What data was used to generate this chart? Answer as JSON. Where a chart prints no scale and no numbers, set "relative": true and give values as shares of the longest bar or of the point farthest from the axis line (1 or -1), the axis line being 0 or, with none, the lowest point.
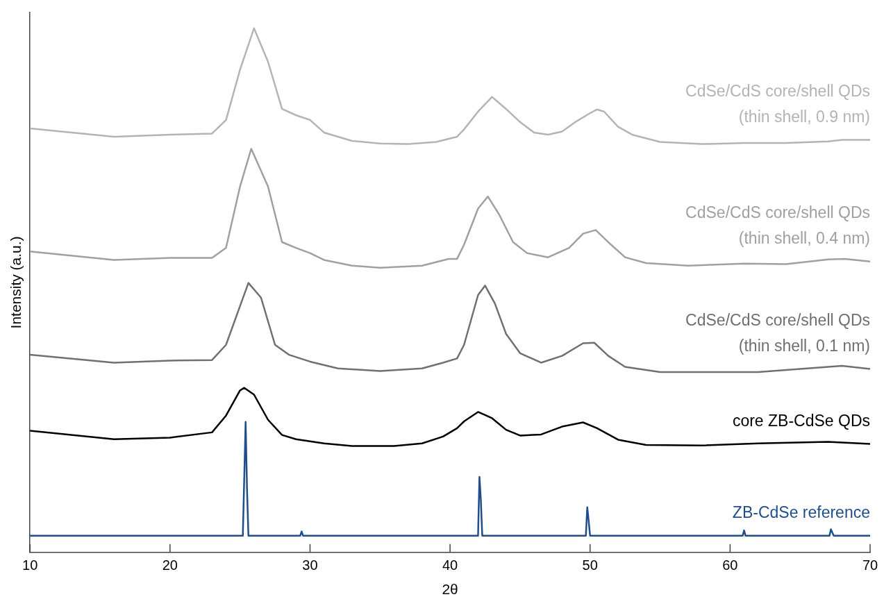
{
  "chart_data": {
    "type": "line",
    "relative": true,
    "xlabel": "2θ",
    "ylabel": "Intensity (a.u.)",
    "xlim": [
      10,
      70
    ],
    "xticks": [
      10,
      20,
      30,
      40,
      50,
      60,
      70
    ],
    "grid": false,
    "legend": false,
    "marker": "none",
    "line_style": "solid",
    "series": [
      {
        "name": "ZB-CdSe reference",
        "color": "#1f4e8c",
        "x": [
          10,
          25.2,
          25.4,
          25.5,
          25.6,
          29.3,
          29.4,
          29.5,
          42.0,
          42.1,
          42.2,
          42.3,
          49.7,
          49.8,
          49.9,
          50.0,
          60.9,
          61.0,
          61.1,
          67.1,
          67.2,
          67.4,
          70
        ],
        "values": [
          0.032,
          0.032,
          0.249,
          0.12,
          0.032,
          0.032,
          0.04,
          0.032,
          0.032,
          0.144,
          0.1,
          0.032,
          0.032,
          0.086,
          0.06,
          0.032,
          0.032,
          0.042,
          0.032,
          0.032,
          0.044,
          0.032,
          0.032
        ]
      },
      {
        "name": "core ZB-CdSe QDs",
        "color": "#000000",
        "x": [
          10,
          16,
          20,
          23,
          24,
          25,
          25.3,
          26,
          27,
          28,
          29,
          31,
          33,
          36,
          38,
          39.5,
          40.5,
          41,
          42,
          43,
          44,
          45,
          46.5,
          48,
          49.5,
          50.5,
          52,
          54,
          58,
          62,
          67,
          70
        ],
        "values": [
          0.232,
          0.216,
          0.219,
          0.229,
          0.261,
          0.309,
          0.314,
          0.301,
          0.253,
          0.224,
          0.216,
          0.208,
          0.203,
          0.203,
          0.208,
          0.221,
          0.237,
          0.25,
          0.268,
          0.256,
          0.234,
          0.223,
          0.225,
          0.24,
          0.248,
          0.237,
          0.215,
          0.205,
          0.204,
          0.208,
          0.211,
          0.207
        ]
      },
      {
        "name": "CdSe/CdS core/shell QDs\n(thin shell, 0.1 nm)",
        "color": "#707070",
        "x": [
          10,
          16,
          20,
          23,
          24,
          25,
          25.6,
          26.5,
          27.5,
          28.5,
          30,
          32,
          35,
          38,
          39.5,
          40.5,
          41,
          42,
          42.5,
          43.2,
          44,
          45,
          46.5,
          48,
          49.5,
          50.3,
          51.3,
          52.5,
          55,
          58,
          62,
          65,
          68,
          70
        ],
        "values": [
          0.377,
          0.362,
          0.366,
          0.367,
          0.396,
          0.47,
          0.514,
          0.486,
          0.396,
          0.377,
          0.364,
          0.351,
          0.346,
          0.351,
          0.362,
          0.37,
          0.396,
          0.491,
          0.509,
          0.475,
          0.417,
          0.38,
          0.362,
          0.375,
          0.399,
          0.4,
          0.375,
          0.354,
          0.344,
          0.344,
          0.344,
          0.35,
          0.356,
          0.35
        ]
      },
      {
        "name": "CdSe/CdS core/shell QDs\n(thin shell, 0.4 nm)",
        "color": "#a0a0a0",
        "x": [
          10,
          16,
          20,
          23,
          24,
          25,
          25.8,
          27,
          28,
          29,
          30,
          31,
          33,
          35,
          38,
          39.9,
          40.5,
          41,
          42,
          42.7,
          43.5,
          44.5,
          45.5,
          47,
          48.5,
          49.5,
          50.4,
          51.5,
          52.5,
          54,
          57,
          61,
          64,
          67,
          68.2,
          70
        ],
        "values": [
          0.574,
          0.558,
          0.562,
          0.562,
          0.581,
          0.698,
          0.77,
          0.698,
          0.592,
          0.581,
          0.571,
          0.558,
          0.547,
          0.543,
          0.547,
          0.56,
          0.56,
          0.587,
          0.656,
          0.679,
          0.645,
          0.592,
          0.571,
          0.563,
          0.581,
          0.608,
          0.615,
          0.587,
          0.563,
          0.552,
          0.547,
          0.551,
          0.55,
          0.559,
          0.56,
          0.555
        ]
      },
      {
        "name": "CdSe/CdS core/shell QDs\n(thin shell, 0.9 nm)",
        "color": "#b4b4b4",
        "x": [
          10,
          16,
          20,
          23,
          24,
          25,
          26,
          27,
          28,
          29,
          30,
          31,
          33,
          35,
          37,
          39,
          40.5,
          41,
          42,
          43,
          44,
          45,
          46,
          47,
          48,
          49,
          50,
          50.5,
          51,
          52,
          53,
          55,
          58,
          61,
          64,
          67,
          68,
          70
        ],
        "values": [
          0.809,
          0.793,
          0.797,
          0.799,
          0.825,
          0.921,
          1,
          0.936,
          0.846,
          0.834,
          0.825,
          0.801,
          0.785,
          0.78,
          0.779,
          0.783,
          0.793,
          0.807,
          0.841,
          0.869,
          0.846,
          0.821,
          0.801,
          0.797,
          0.803,
          0.822,
          0.838,
          0.845,
          0.841,
          0.812,
          0.797,
          0.783,
          0.779,
          0.781,
          0.781,
          0.784,
          0.787,
          0.787
        ]
      }
    ]
  }
}
